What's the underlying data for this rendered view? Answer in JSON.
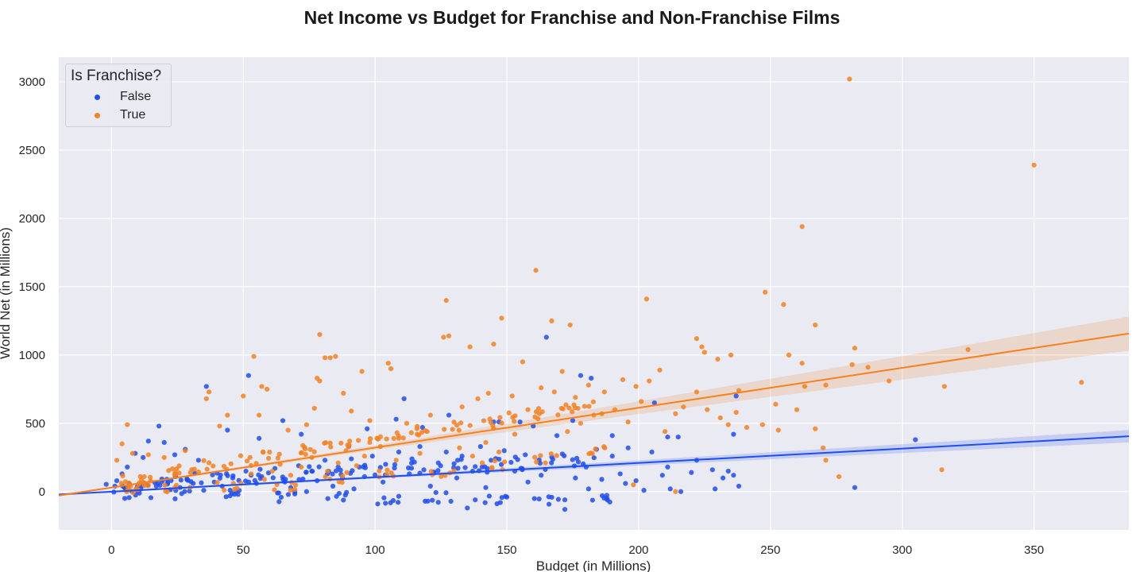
{
  "chart_data": {
    "type": "scatter",
    "title": "Net Income vs Budget for Franchise and Non-Franchise Films",
    "xlabel": "Budget (in Millions)",
    "ylabel": "World Net (in Millions)",
    "xlim": [
      -20,
      386
    ],
    "ylim": [
      -280,
      3180
    ],
    "x_ticks": [
      0,
      50,
      100,
      150,
      200,
      250,
      300,
      350
    ],
    "y_ticks": [
      0,
      500,
      1000,
      1500,
      2000,
      2500,
      3000
    ],
    "grid": true,
    "legend": {
      "title": "Is Franchise?",
      "placement": "top-left"
    },
    "series": [
      {
        "name": "False",
        "color": "#1f4ef0",
        "regression": {
          "intercept": 0,
          "slope": 1.05,
          "ci_halfwidth_at_end": 45
        },
        "cluster_points": [
          [
            3,
            20
          ],
          [
            8,
            40
          ],
          [
            15,
            60
          ],
          [
            22,
            80
          ],
          [
            30,
            100
          ],
          [
            40,
            120
          ],
          [
            50,
            90
          ],
          [
            60,
            130
          ],
          [
            70,
            110
          ],
          [
            80,
            150
          ],
          [
            90,
            120
          ],
          [
            100,
            160
          ],
          [
            110,
            180
          ],
          [
            120,
            150
          ],
          [
            130,
            200
          ],
          [
            140,
            180
          ],
          [
            150,
            220
          ],
          [
            160,
            200
          ],
          [
            170,
            240
          ],
          [
            180,
            210
          ],
          [
            10,
            -10
          ],
          [
            25,
            -20
          ],
          [
            45,
            -30
          ],
          [
            65,
            -40
          ],
          [
            85,
            -30
          ],
          [
            105,
            -60
          ],
          [
            125,
            -40
          ],
          [
            145,
            -50
          ],
          [
            165,
            -60
          ],
          [
            185,
            -40
          ]
        ],
        "points": [
          [
            36,
            770
          ],
          [
            52,
            850
          ],
          [
            18,
            480
          ],
          [
            14,
            370
          ],
          [
            165,
            1130
          ],
          [
            111,
            680
          ],
          [
            147,
            510
          ],
          [
            178,
            850
          ],
          [
            182,
            830
          ],
          [
            206,
            650
          ],
          [
            155,
            510
          ],
          [
            169,
            410
          ],
          [
            190,
            410
          ],
          [
            211,
            400
          ],
          [
            215,
            400
          ],
          [
            236,
            420
          ],
          [
            237,
            700
          ],
          [
            305,
            380
          ],
          [
            282,
            30
          ],
          [
            229,
            20
          ],
          [
            202,
            10
          ],
          [
            216,
            0
          ],
          [
            135,
            -120
          ],
          [
            172,
            -130
          ],
          [
            138,
            -60
          ],
          [
            119,
            -70
          ],
          [
            101,
            -90
          ],
          [
            150,
            -40
          ],
          [
            172,
            -60
          ],
          [
            188,
            -50
          ],
          [
            190,
            260
          ],
          [
            205,
            290
          ],
          [
            211,
            180
          ],
          [
            222,
            230
          ],
          [
            236,
            120
          ],
          [
            238,
            40
          ],
          [
            234,
            150
          ],
          [
            196,
            320
          ],
          [
            184,
            310
          ],
          [
            175,
            520
          ],
          [
            160,
            480
          ],
          [
            145,
            510
          ],
          [
            128,
            560
          ],
          [
            118,
            470
          ],
          [
            108,
            530
          ],
          [
            97,
            460
          ],
          [
            90,
            330
          ],
          [
            72,
            420
          ],
          [
            65,
            520
          ],
          [
            56,
            390
          ],
          [
            44,
            450
          ],
          [
            33,
            230
          ],
          [
            28,
            310
          ],
          [
            24,
            270
          ],
          [
            20,
            360
          ],
          [
            12,
            250
          ],
          [
            9,
            280
          ],
          [
            6,
            180
          ],
          [
            4,
            130
          ],
          [
            2,
            80
          ],
          [
            45,
            10
          ],
          [
            48,
            -20
          ],
          [
            55,
            60
          ],
          [
            63,
            -10
          ],
          [
            68,
            30
          ],
          [
            74,
            0
          ],
          [
            78,
            80
          ],
          [
            84,
            40
          ],
          [
            92,
            20
          ],
          [
            96,
            110
          ],
          [
            103,
            70
          ],
          [
            113,
            130
          ],
          [
            121,
            40
          ],
          [
            131,
            100
          ],
          [
            137,
            150
          ],
          [
            142,
            30
          ],
          [
            153,
            150
          ],
          [
            158,
            70
          ],
          [
            163,
            120
          ],
          [
            176,
            100
          ],
          [
            181,
            20
          ],
          [
            186,
            90
          ],
          [
            193,
            130
          ],
          [
            199,
            80
          ],
          [
            209,
            120
          ],
          [
            220,
            140
          ],
          [
            228,
            160
          ],
          [
            232,
            100
          ],
          [
            212,
            20
          ],
          [
            195,
            60
          ],
          [
            17,
            40
          ],
          [
            21,
            90
          ],
          [
            26,
            30
          ],
          [
            31,
            60
          ],
          [
            35,
            10
          ],
          [
            39,
            70
          ],
          [
            42,
            40
          ],
          [
            46,
            100
          ],
          [
            51,
            150
          ],
          [
            57,
            110
          ],
          [
            62,
            170
          ],
          [
            66,
            90
          ],
          [
            71,
            190
          ],
          [
            76,
            150
          ],
          [
            81,
            230
          ],
          [
            86,
            180
          ],
          [
            91,
            240
          ],
          [
            94,
            180
          ],
          [
            99,
            260
          ],
          [
            104,
            200
          ],
          [
            109,
            290
          ],
          [
            114,
            240
          ],
          [
            117,
            330
          ],
          [
            124,
            210
          ],
          [
            127,
            290
          ],
          [
            133,
            260
          ],
          [
            140,
            330
          ],
          [
            144,
            230
          ],
          [
            149,
            300
          ],
          [
            157,
            270
          ]
        ]
      },
      {
        "name": "True",
        "color": "#f5811f",
        "regression": {
          "intercept": 30,
          "slope": 2.92,
          "ci_halfwidth_at_end": 125
        },
        "cluster_points": [
          [
            3,
            40
          ],
          [
            8,
            80
          ],
          [
            15,
            100
          ],
          [
            22,
            130
          ],
          [
            30,
            170
          ],
          [
            40,
            200
          ],
          [
            50,
            230
          ],
          [
            60,
            260
          ],
          [
            70,
            300
          ],
          [
            80,
            330
          ],
          [
            90,
            350
          ],
          [
            100,
            380
          ],
          [
            110,
            420
          ],
          [
            120,
            450
          ],
          [
            130,
            480
          ],
          [
            140,
            500
          ],
          [
            150,
            540
          ],
          [
            160,
            570
          ],
          [
            170,
            600
          ],
          [
            180,
            630
          ],
          [
            10,
            10
          ],
          [
            25,
            20
          ],
          [
            45,
            40
          ],
          [
            65,
            50
          ],
          [
            85,
            100
          ],
          [
            105,
            120
          ],
          [
            125,
            150
          ],
          [
            145,
            200
          ],
          [
            165,
            250
          ],
          [
            185,
            300
          ]
        ],
        "points": [
          [
            280,
            3020
          ],
          [
            350,
            2390
          ],
          [
            262,
            1940
          ],
          [
            161,
            1620
          ],
          [
            248,
            1460
          ],
          [
            255,
            1370
          ],
          [
            127,
            1400
          ],
          [
            203,
            1410
          ],
          [
            148,
            1270
          ],
          [
            167,
            1250
          ],
          [
            174,
            1220
          ],
          [
            267,
            1220
          ],
          [
            79,
            1150
          ],
          [
            126,
            1130
          ],
          [
            128,
            1140
          ],
          [
            222,
            1120
          ],
          [
            224,
            1060
          ],
          [
            282,
            1050
          ],
          [
            325,
            1040
          ],
          [
            145,
            1080
          ],
          [
            136,
            1060
          ],
          [
            54,
            990
          ],
          [
            83,
            980
          ],
          [
            85,
            990
          ],
          [
            81,
            980
          ],
          [
            105,
            940
          ],
          [
            106,
            900
          ],
          [
            156,
            950
          ],
          [
            171,
            880
          ],
          [
            208,
            890
          ],
          [
            230,
            970
          ],
          [
            235,
            1000
          ],
          [
            257,
            1000
          ],
          [
            225,
            1020
          ],
          [
            262,
            940
          ],
          [
            281,
            930
          ],
          [
            287,
            910
          ],
          [
            295,
            810
          ],
          [
            368,
            800
          ],
          [
            316,
            770
          ],
          [
            263,
            770
          ],
          [
            271,
            780
          ],
          [
            238,
            740
          ],
          [
            222,
            730
          ],
          [
            252,
            640
          ],
          [
            260,
            600
          ],
          [
            267,
            460
          ],
          [
            247,
            490
          ],
          [
            253,
            450
          ],
          [
            237,
            580
          ],
          [
            234,
            490
          ],
          [
            231,
            540
          ],
          [
            241,
            470
          ],
          [
            270,
            320
          ],
          [
            271,
            230
          ],
          [
            276,
            110
          ],
          [
            315,
            160
          ],
          [
            214,
            0
          ],
          [
            198,
            50
          ],
          [
            214,
            570
          ],
          [
            78,
            830
          ],
          [
            95,
            880
          ],
          [
            79,
            810
          ],
          [
            77,
            610
          ],
          [
            88,
            720
          ],
          [
            57,
            770
          ],
          [
            59,
            750
          ],
          [
            50,
            700
          ],
          [
            44,
            560
          ],
          [
            56,
            560
          ],
          [
            36,
            680
          ],
          [
            37,
            730
          ],
          [
            6,
            490
          ],
          [
            4,
            350
          ],
          [
            2,
            230
          ],
          [
            8,
            280
          ],
          [
            14,
            270
          ],
          [
            20,
            250
          ],
          [
            28,
            300
          ],
          [
            41,
            480
          ],
          [
            67,
            450
          ],
          [
            74,
            490
          ],
          [
            91,
            590
          ],
          [
            98,
            520
          ],
          [
            112,
            500
          ],
          [
            116,
            420
          ],
          [
            121,
            560
          ],
          [
            133,
            620
          ],
          [
            139,
            680
          ],
          [
            143,
            720
          ],
          [
            152,
            700
          ],
          [
            158,
            600
          ],
          [
            163,
            760
          ],
          [
            168,
            730
          ],
          [
            176,
            690
          ],
          [
            181,
            780
          ],
          [
            187,
            730
          ],
          [
            194,
            820
          ],
          [
            199,
            770
          ],
          [
            204,
            810
          ],
          [
            186,
            570
          ],
          [
            191,
            600
          ],
          [
            196,
            510
          ],
          [
            201,
            660
          ],
          [
            210,
            440
          ],
          [
            217,
            620
          ],
          [
            226,
            600
          ],
          [
            183,
            560
          ],
          [
            178,
            500
          ],
          [
            173,
            440
          ],
          [
            132,
            320
          ],
          [
            137,
            260
          ],
          [
            142,
            360
          ],
          [
            147,
            290
          ],
          [
            153,
            420
          ],
          [
            117,
            280
          ],
          [
            108,
            230
          ],
          [
            102,
            330
          ],
          [
            96,
            260
          ],
          [
            93,
            190
          ],
          [
            89,
            300
          ],
          [
            86,
            210
          ],
          [
            82,
            150
          ],
          [
            76,
            250
          ],
          [
            72,
            180
          ],
          [
            68,
            120
          ],
          [
            64,
            200
          ],
          [
            61,
            150
          ],
          [
            58,
            90
          ],
          [
            53,
            130
          ]
        ]
      }
    ]
  }
}
